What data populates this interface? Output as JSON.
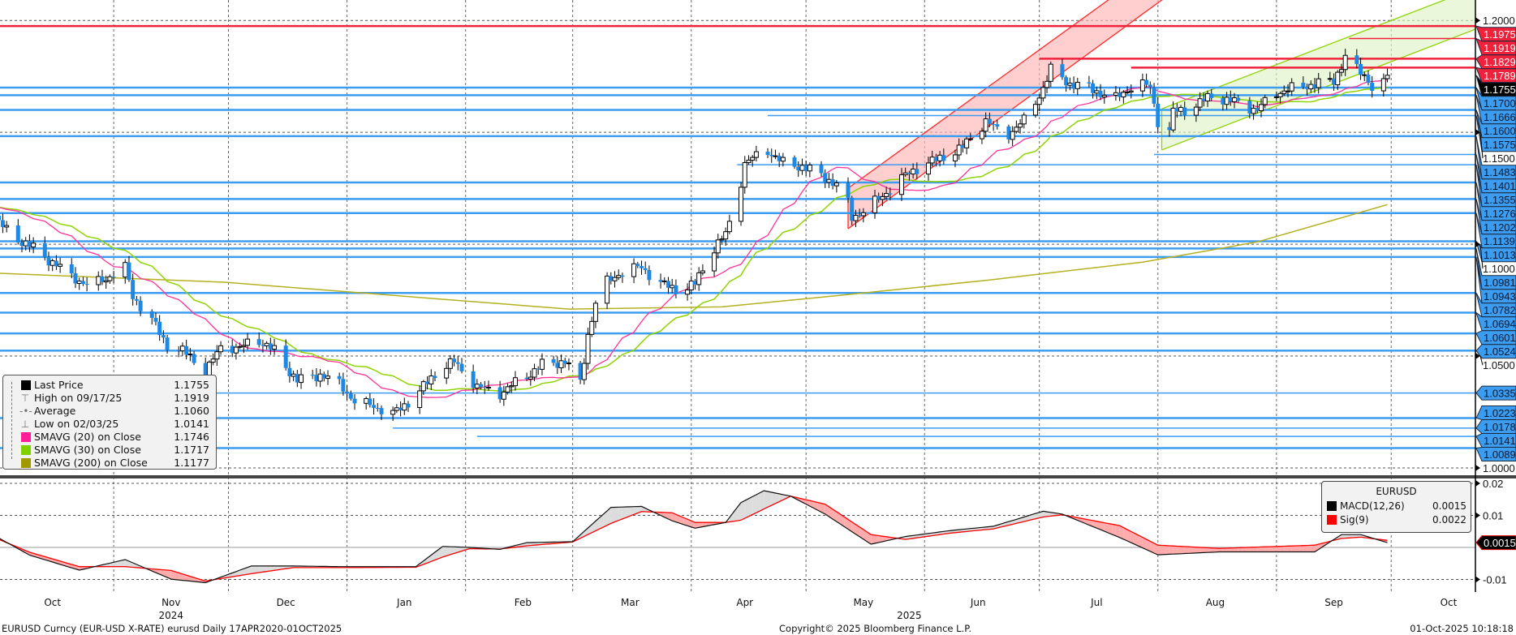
{
  "chart_data": {
    "type": "candlestick",
    "title": "EURUSD Curncy (EUR-USD X-RATE) eurusd Daily 17APR2020-01OCT2025",
    "x_unit": "days since 2024-10-01",
    "month_labels": [
      {
        "label": "Oct",
        "day": 15
      },
      {
        "label": "Nov",
        "day": 46
      },
      {
        "label": "Dec",
        "day": 76
      },
      {
        "label": "Jan",
        "day": 107
      },
      {
        "label": "Feb",
        "day": 138
      },
      {
        "label": "Mar",
        "day": 166
      },
      {
        "label": "Apr",
        "day": 196
      },
      {
        "label": "May",
        "day": 227
      },
      {
        "label": "Jun",
        "day": 257
      },
      {
        "label": "Jul",
        "day": 288
      },
      {
        "label": "Aug",
        "day": 319
      },
      {
        "label": "Sep",
        "day": 350
      },
      {
        "label": "Oct",
        "day": 380
      }
    ],
    "month_gridlines": [
      31,
      61,
      92,
      123,
      151,
      182,
      212,
      243,
      273,
      304,
      335,
      365
    ],
    "year_labels": [
      {
        "label": "2024",
        "day": 46
      },
      {
        "label": "2025",
        "day": 239
      }
    ],
    "price_axis": {
      "min": 1.0,
      "max": 1.209,
      "gridlines": [
        1.0,
        1.05,
        1.1,
        1.15,
        1.2
      ],
      "tick_labels": [
        "1.0000",
        "1.0500",
        "1.1000",
        "1.1500",
        "1.2000"
      ]
    },
    "close_series": [
      [
        1,
        1.109
      ],
      [
        5,
        1.103
      ],
      [
        11,
        1.097
      ],
      [
        19,
        1.087
      ],
      [
        24,
        1.082
      ],
      [
        29,
        1.085
      ],
      [
        34,
        1.09
      ],
      [
        36,
        1.077
      ],
      [
        41,
        1.066
      ],
      [
        45,
        1.055
      ],
      [
        51,
        1.05
      ],
      [
        55,
        1.042
      ],
      [
        59,
        1.054
      ],
      [
        64,
        1.053
      ],
      [
        68,
        1.058
      ],
      [
        73,
        1.052
      ],
      [
        79,
        1.039
      ],
      [
        85,
        1.042
      ],
      [
        90,
        1.038
      ],
      [
        94,
        1.03
      ],
      [
        99,
        1.028
      ],
      [
        104,
        1.024
      ],
      [
        111,
        1.034
      ],
      [
        116,
        1.044
      ],
      [
        120,
        1.047
      ],
      [
        126,
        1.036
      ],
      [
        132,
        1.033
      ],
      [
        138,
        1.04
      ],
      [
        143,
        1.046
      ],
      [
        149,
        1.048
      ],
      [
        153,
        1.038
      ],
      [
        155,
        1.06
      ],
      [
        158,
        1.081
      ],
      [
        163,
        1.087
      ],
      [
        169,
        1.09
      ],
      [
        174,
        1.082
      ],
      [
        180,
        1.079
      ],
      [
        183,
        1.082
      ],
      [
        187,
        1.096
      ],
      [
        191,
        1.104
      ],
      [
        194,
        1.12
      ],
      [
        196,
        1.136
      ],
      [
        202,
        1.142
      ],
      [
        206,
        1.136
      ],
      [
        211,
        1.135
      ],
      [
        217,
        1.13
      ],
      [
        222,
        1.125
      ],
      [
        224,
        1.112
      ],
      [
        231,
        1.12
      ],
      [
        236,
        1.128
      ],
      [
        241,
        1.134
      ],
      [
        247,
        1.138
      ],
      [
        253,
        1.143
      ],
      [
        259,
        1.155
      ],
      [
        264,
        1.148
      ],
      [
        269,
        1.155
      ],
      [
        274,
        1.17
      ],
      [
        276,
        1.178
      ],
      [
        281,
        1.172
      ],
      [
        286,
        1.17
      ],
      [
        293,
        1.165
      ],
      [
        298,
        1.172
      ],
      [
        302,
        1.17
      ],
      [
        304,
        1.155
      ],
      [
        306,
        1.141
      ],
      [
        308,
        1.159
      ],
      [
        312,
        1.16
      ],
      [
        318,
        1.166
      ],
      [
        325,
        1.163
      ],
      [
        330,
        1.16
      ],
      [
        335,
        1.168
      ],
      [
        340,
        1.17
      ],
      [
        345,
        1.172
      ],
      [
        350,
        1.173
      ],
      [
        354,
        1.188
      ],
      [
        356,
        1.178
      ],
      [
        359,
        1.174
      ],
      [
        361,
        1.166
      ],
      [
        362,
        1.167
      ],
      [
        364,
        1.1755
      ]
    ],
    "sma200_series": [
      [
        1,
        1.087
      ],
      [
        60,
        1.083
      ],
      [
        120,
        1.075
      ],
      [
        150,
        1.071
      ],
      [
        190,
        1.072
      ],
      [
        220,
        1.077
      ],
      [
        260,
        1.084
      ],
      [
        300,
        1.092
      ],
      [
        330,
        1.101
      ],
      [
        364,
        1.1177
      ]
    ],
    "levels": [
      {
        "value": "1.2000",
        "kind": "grid"
      },
      {
        "value": "1.1500",
        "kind": "grid"
      },
      {
        "value": "1.1000",
        "kind": "grid"
      },
      {
        "value": "1.0500",
        "kind": "grid"
      },
      {
        "value": "1.0000",
        "kind": "grid"
      },
      {
        "value": "1.1829",
        "color": "#f0213a",
        "from_day": 273,
        "weight": "thick"
      },
      {
        "value": "1.1755",
        "kind": "last"
      },
      {
        "value": "1.1666",
        "color": "#3c9cf0",
        "from_day": 0,
        "weight": "thick"
      },
      {
        "value": "1.1575",
        "color": "#3c9cf0",
        "from_day": 202,
        "weight": "thin"
      },
      {
        "value": "1.1401",
        "color": "#3c9cf0",
        "from_day": 303,
        "weight": "thin"
      },
      {
        "value": "1.1013",
        "color": "#3c9cf0",
        "from_day": 0,
        "weight": "thick"
      },
      {
        "value": "1.0943",
        "color": "#3c9cf0",
        "from_day": 0,
        "weight": "thick"
      },
      {
        "value": "1.0141",
        "color": "#3c9cf0",
        "from_day": 126,
        "weight": "thin"
      },
      {
        "value": "1.1975",
        "color": "#f0213a",
        "from_day": 0,
        "weight": "thick"
      },
      {
        "value": "1.1919",
        "color": "#f0213a",
        "from_day": 354,
        "weight": "thin"
      },
      {
        "value": "1.1789",
        "color": "#f0213a",
        "from_day": 297,
        "weight": "thick"
      },
      {
        "value": "1.1700",
        "color": "#3c9cf0",
        "from_day": 0,
        "weight": "thick"
      },
      {
        "value": "1.1600",
        "color": "#3c9cf0",
        "from_day": 0,
        "weight": "thick"
      },
      {
        "value": "1.1483",
        "color": "#3c9cf0",
        "from_day": 0,
        "weight": "thick"
      },
      {
        "value": "1.1355",
        "color": "#3c9cf0",
        "from_day": 194,
        "weight": "thin"
      },
      {
        "value": "1.1276",
        "color": "#3c9cf0",
        "from_day": 0,
        "weight": "thick"
      },
      {
        "value": "1.1202",
        "color": "#3c9cf0",
        "from_day": 0,
        "weight": "thick"
      },
      {
        "value": "1.1139",
        "color": "#3c9cf0",
        "from_day": 0,
        "weight": "thick"
      },
      {
        "value": "1.0981",
        "color": "#3c9cf0",
        "from_day": 0,
        "weight": "thick"
      },
      {
        "value": "1.0782",
        "color": "#3c9cf0",
        "from_day": 0,
        "weight": "thick"
      },
      {
        "value": "1.0694",
        "color": "#3c9cf0",
        "from_day": 0,
        "weight": "thick"
      },
      {
        "value": "1.0601",
        "color": "#3c9cf0",
        "from_day": 0,
        "weight": "thick"
      },
      {
        "value": "1.0524",
        "color": "#3c9cf0",
        "from_day": 0,
        "weight": "thick"
      },
      {
        "value": "1.0335",
        "color": "#3c9cf0",
        "from_day": 53,
        "weight": "thin"
      },
      {
        "value": "1.0223",
        "color": "#3c9cf0",
        "from_day": 0,
        "weight": "thick"
      },
      {
        "value": "1.0178",
        "color": "#3c9cf0",
        "from_day": 104,
        "weight": "thin"
      },
      {
        "value": "1.0089",
        "color": "#3c9cf0",
        "from_day": 0,
        "weight": "thick"
      }
    ],
    "channels": [
      {
        "name": "red-channel",
        "stroke": "#ff2a2a",
        "fill": "#ffb3b3",
        "lower": [
          [
            223,
            1.1069
          ],
          [
            305,
            1.2091
          ]
        ],
        "upper": [
          [
            223,
            1.125
          ],
          [
            291,
            1.2091
          ]
        ]
      },
      {
        "name": "green-channel",
        "stroke": "#8fd400",
        "fill": "#dff2c8",
        "lower": [
          [
            305,
            1.1421
          ],
          [
            386,
            1.1954
          ]
        ],
        "upper": [
          [
            305,
            1.1605
          ],
          [
            386,
            1.2138
          ]
        ]
      }
    ],
    "legend": [
      {
        "label": "Last Price",
        "value": "1.1755",
        "icon": "square",
        "color": "#000000"
      },
      {
        "label": "High on 09/17/25",
        "value": "1.1919",
        "icon": "high-marker"
      },
      {
        "label": "Average",
        "value": "1.1060",
        "icon": "average-marker"
      },
      {
        "label": "Low on 02/03/25",
        "value": "1.0141",
        "icon": "low-marker"
      },
      {
        "label": "SMAVG (20)  on Close",
        "value": "1.1746",
        "icon": "square",
        "color": "#ff1e96"
      },
      {
        "label": "SMAVG (30)  on Close",
        "value": "1.1717",
        "icon": "square",
        "color": "#80d000"
      },
      {
        "label": "SMAVG (200)  on Close",
        "value": "1.1177",
        "icon": "square",
        "color": "#a09a00"
      }
    ],
    "colors": {
      "up_body": "#ffffff",
      "down_body": "#1e88e5",
      "sma20": "#ff3399",
      "sma30": "#8fd400",
      "sma200": "#b5b020"
    },
    "macd": {
      "title": "EURUSD",
      "macd_label": "MACD(12,26)",
      "macd_value": "0.0015",
      "signal_label": "Sig(9)",
      "signal_value": "0.0022",
      "last_label": "0.0015",
      "axis_ticks": [
        {
          "value": 0.02,
          "label": "0.02"
        },
        {
          "value": 0.01,
          "label": "0.01"
        },
        {
          "value": -0.01,
          "label": "-0.01"
        }
      ],
      "macd_series": [
        [
          1,
          0.0029
        ],
        [
          9,
          -0.0024
        ],
        [
          22,
          -0.0071
        ],
        [
          34,
          -0.0038
        ],
        [
          46,
          -0.0099
        ],
        [
          55,
          -0.011
        ],
        [
          67,
          -0.0058
        ],
        [
          78,
          -0.0058
        ],
        [
          90,
          -0.006
        ],
        [
          110,
          -0.006
        ],
        [
          117,
          0.0003
        ],
        [
          124,
          0.0
        ],
        [
          132,
          -0.0006
        ],
        [
          139,
          0.0015
        ],
        [
          151,
          0.0018
        ],
        [
          161,
          0.0125
        ],
        [
          169,
          0.0128
        ],
        [
          177,
          0.0083
        ],
        [
          183,
          0.006
        ],
        [
          191,
          0.0078
        ],
        [
          195,
          0.014
        ],
        [
          201,
          0.0177
        ],
        [
          208,
          0.016
        ],
        [
          217,
          0.0104
        ],
        [
          229,
          0.001
        ],
        [
          238,
          0.0034
        ],
        [
          250,
          0.0053
        ],
        [
          261,
          0.0066
        ],
        [
          274,
          0.0113
        ],
        [
          279,
          0.0104
        ],
        [
          294,
          0.0031
        ],
        [
          304,
          -0.0023
        ],
        [
          320,
          -0.0014
        ],
        [
          345,
          -0.0014
        ],
        [
          352,
          0.004
        ],
        [
          357,
          0.004
        ],
        [
          364,
          0.0015
        ]
      ],
      "signal_series": [
        [
          1,
          0.0025
        ],
        [
          9,
          -0.0015
        ],
        [
          22,
          -0.006
        ],
        [
          34,
          -0.006
        ],
        [
          46,
          -0.0072
        ],
        [
          55,
          -0.0105
        ],
        [
          67,
          -0.0082
        ],
        [
          78,
          -0.0063
        ],
        [
          90,
          -0.0063
        ],
        [
          110,
          -0.0062
        ],
        [
          117,
          -0.003
        ],
        [
          124,
          -0.0004
        ],
        [
          132,
          -0.0005
        ],
        [
          139,
          0.0005
        ],
        [
          151,
          0.0017
        ],
        [
          161,
          0.0075
        ],
        [
          169,
          0.0112
        ],
        [
          177,
          0.0108
        ],
        [
          183,
          0.0078
        ],
        [
          191,
          0.0078
        ],
        [
          195,
          0.0085
        ],
        [
          201,
          0.012
        ],
        [
          208,
          0.016
        ],
        [
          217,
          0.0135
        ],
        [
          229,
          0.004
        ],
        [
          238,
          0.0025
        ],
        [
          250,
          0.0045
        ],
        [
          261,
          0.0058
        ],
        [
          274,
          0.0095
        ],
        [
          279,
          0.0102
        ],
        [
          294,
          0.0068
        ],
        [
          304,
          0.0007
        ],
        [
          320,
          -0.0003
        ],
        [
          345,
          0.0007
        ],
        [
          352,
          0.0028
        ],
        [
          357,
          0.0032
        ],
        [
          364,
          0.0022
        ]
      ]
    }
  },
  "footer": {
    "left": "EURUSD Curncy (EUR-USD X-RATE) eurusd Daily 17APR2020-01OCT2025",
    "center": "Copyright© 2025 Bloomberg Finance L.P.",
    "right": "01-Oct-2025 10:18:18"
  }
}
